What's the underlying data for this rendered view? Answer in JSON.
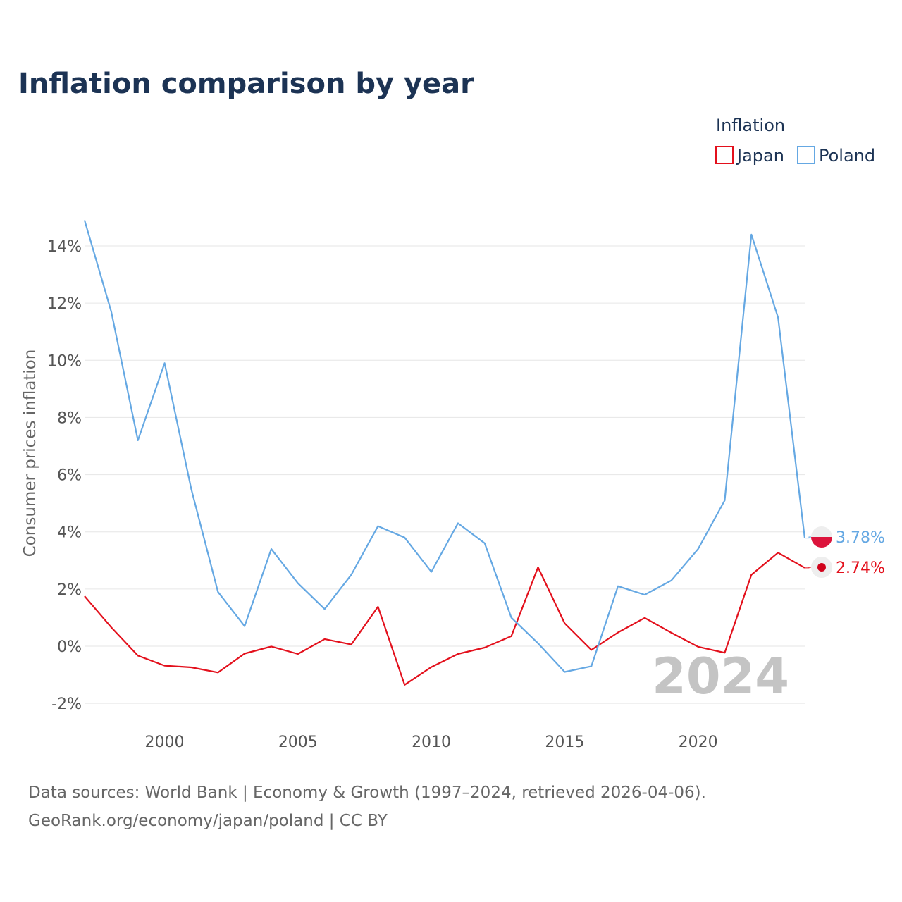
{
  "title": "Inflation comparison by year",
  "legend": {
    "title": "Inflation",
    "items": [
      {
        "name": "Japan",
        "color": "#e3101c"
      },
      {
        "name": "Poland",
        "color": "#65a8e3"
      }
    ]
  },
  "watermark_year": "2024",
  "source": {
    "line1": "Data sources: World Bank | Economy & Growth (1997–2024, retrieved 2026-04-06).",
    "line2": "GeoRank.org/economy/japan/poland | CC BY"
  },
  "chart_data": {
    "type": "line",
    "title": "Inflation comparison by year",
    "xlabel": "",
    "ylabel": "Consumer prices inflation",
    "xlim": [
      1997,
      2024
    ],
    "ylim": [
      -2.5,
      15
    ],
    "x_ticks": [
      2000,
      2005,
      2010,
      2015,
      2020
    ],
    "x_tick_labels": [
      "2000",
      "2005",
      "2010",
      "2015",
      "2020"
    ],
    "y_ticks": [
      -2,
      0,
      2,
      4,
      6,
      8,
      10,
      12,
      14
    ],
    "y_tick_labels": [
      "-2%",
      "0%",
      "2%",
      "4%",
      "6%",
      "8%",
      "10%",
      "12%",
      "14%"
    ],
    "x": [
      1997,
      1998,
      1999,
      2000,
      2001,
      2002,
      2003,
      2004,
      2005,
      2006,
      2007,
      2008,
      2009,
      2010,
      2011,
      2012,
      2013,
      2014,
      2015,
      2016,
      2017,
      2018,
      2019,
      2020,
      2021,
      2022,
      2023,
      2024
    ],
    "series": [
      {
        "name": "Japan",
        "color": "#e3101c",
        "values": [
          1.75,
          0.66,
          -0.33,
          -0.68,
          -0.74,
          -0.92,
          -0.26,
          -0.01,
          -0.27,
          0.25,
          0.06,
          1.38,
          -1.35,
          -0.73,
          -0.27,
          -0.05,
          0.35,
          2.76,
          0.8,
          -0.13,
          0.48,
          0.99,
          0.47,
          -0.02,
          -0.23,
          2.5,
          3.27,
          2.74
        ],
        "end_label": "2.74%"
      },
      {
        "name": "Poland",
        "color": "#65a8e3",
        "values": [
          14.9,
          11.7,
          7.2,
          9.9,
          5.5,
          1.9,
          0.7,
          3.4,
          2.2,
          1.3,
          2.5,
          4.2,
          3.8,
          2.6,
          4.3,
          3.6,
          1.0,
          0.1,
          -0.9,
          -0.7,
          2.1,
          1.8,
          2.3,
          3.4,
          5.1,
          14.4,
          11.5,
          3.78
        ],
        "end_label": "3.78%"
      }
    ],
    "grid": true,
    "legend_position": "top-right"
  }
}
